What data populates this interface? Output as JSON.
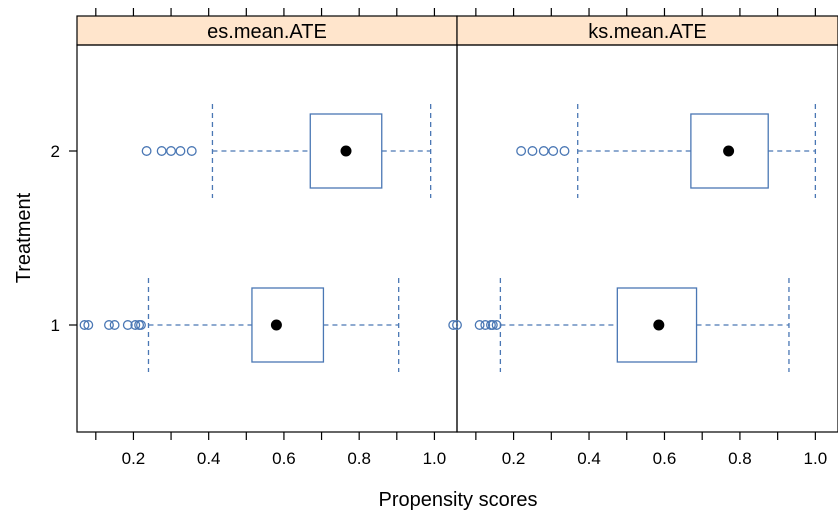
{
  "chart_data": {
    "type": "boxplot",
    "xlabel": "Propensity scores",
    "ylabel": "Treatment",
    "xlim": [
      0.05,
      1.06
    ],
    "x_ticks": [
      0.2,
      0.4,
      0.6,
      0.8,
      1.0
    ],
    "x_tick_labels": [
      "0.2",
      "0.4",
      "0.6",
      "0.8",
      "1.0"
    ],
    "categories": [
      "1",
      "2"
    ],
    "strip_color": "#FFE5CC",
    "box_color": "#4A77B4",
    "median_color": "#000000",
    "panels": [
      {
        "title": "es.mean.ATE",
        "boxes": [
          {
            "category": "1",
            "whisker_low": 0.24,
            "q1": 0.515,
            "median": 0.58,
            "q3": 0.705,
            "whisker_high": 0.905,
            "outliers": [
              0.07,
              0.08,
              0.135,
              0.15,
              0.185,
              0.205,
              0.215,
              0.22
            ]
          },
          {
            "category": "2",
            "whisker_low": 0.41,
            "q1": 0.67,
            "median": 0.765,
            "q3": 0.86,
            "whisker_high": 0.99,
            "outliers": [
              0.235,
              0.275,
              0.3,
              0.325,
              0.355
            ]
          }
        ]
      },
      {
        "title": "ks.mean.ATE",
        "boxes": [
          {
            "category": "1",
            "whisker_low": 0.165,
            "q1": 0.475,
            "median": 0.585,
            "q3": 0.685,
            "whisker_high": 0.93,
            "outliers": [
              0.04,
              0.05,
              0.11,
              0.125,
              0.14,
              0.145,
              0.155
            ]
          },
          {
            "category": "2",
            "whisker_low": 0.37,
            "q1": 0.67,
            "median": 0.77,
            "q3": 0.875,
            "whisker_high": 1.0,
            "outliers": [
              0.22,
              0.25,
              0.28,
              0.305,
              0.335
            ]
          }
        ]
      }
    ]
  }
}
